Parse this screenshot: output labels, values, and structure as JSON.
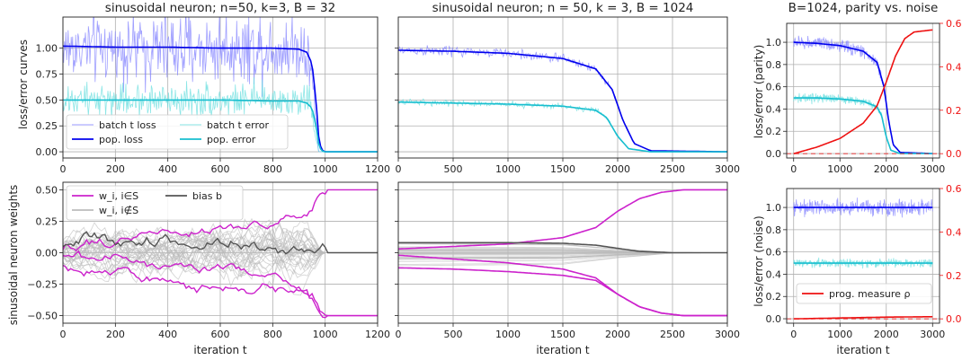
{
  "figure": {
    "type": "line",
    "grid": true
  },
  "colors": {
    "batch_loss": "#8080ff",
    "pop_loss": "#0000ee",
    "batch_error": "#66dddd",
    "pop_error": "#17becf",
    "weight_in_S": "#cc22cc",
    "weight_not_in_S": "#bbbbbb",
    "bias": "#555555",
    "prog_measure": "#ee1111",
    "right_axis": "#ee1111"
  },
  "chart_data": [
    {
      "id": "p1",
      "type": "line",
      "title": "sinusoidal neuron; n=50, k=3, B = 32",
      "xlabel": "",
      "ylabel": "loss/error curves",
      "xlim": [
        0,
        1200
      ],
      "ylim": [
        -0.06,
        1.3
      ],
      "xticks": [
        0,
        200,
        400,
        600,
        800,
        1000,
        1200
      ],
      "yticks": [
        0.0,
        0.25,
        0.5,
        0.75,
        1.0
      ],
      "ytick_labels": [
        "0.00",
        "0.25",
        "0.50",
        "0.75",
        "1.00"
      ],
      "legend_location": "lower-left",
      "legend": [
        "batch t loss",
        "pop. loss",
        "batch t error",
        "pop. error"
      ],
      "series": [
        {
          "name": "batch t loss",
          "style": "noisy",
          "color_key": "batch_loss",
          "x": [
            0,
            940,
            975,
            1200
          ],
          "y": [
            1.0,
            1.0,
            0.0,
            0.0
          ],
          "noise": 0.17
        },
        {
          "name": "batch t error",
          "style": "noisy",
          "color_key": "batch_error",
          "x": [
            0,
            940,
            975,
            1200
          ],
          "y": [
            0.5,
            0.5,
            0.0,
            0.0
          ],
          "noise": 0.08
        },
        {
          "name": "pop. loss",
          "style": "line",
          "color_key": "pop_loss",
          "x": [
            0,
            200,
            400,
            600,
            800,
            900,
            930,
            950,
            965,
            975,
            985,
            1000,
            1200
          ],
          "y": [
            1.02,
            1.01,
            1.01,
            1.0,
            1.0,
            0.99,
            0.96,
            0.85,
            0.5,
            0.15,
            0.02,
            0.0,
            0.0
          ]
        },
        {
          "name": "pop. error",
          "style": "line",
          "color_key": "pop_error",
          "x": [
            0,
            200,
            400,
            600,
            800,
            900,
            930,
            950,
            965,
            975,
            985,
            1000,
            1200
          ],
          "y": [
            0.5,
            0.5,
            0.5,
            0.5,
            0.49,
            0.49,
            0.47,
            0.42,
            0.25,
            0.08,
            0.01,
            0.0,
            0.0
          ]
        }
      ]
    },
    {
      "id": "p2",
      "type": "line",
      "title": "sinusoidal neuron; n = 50, k = 3, B = 1024",
      "xlabel": "",
      "ylabel": "",
      "xlim": [
        0,
        3000
      ],
      "ylim": [
        -0.06,
        1.3
      ],
      "xticks": [
        0,
        500,
        1000,
        1500,
        2000,
        2500,
        3000
      ],
      "yticks": [
        0.0,
        0.25,
        0.5,
        0.75,
        1.0
      ],
      "ytick_labels": [],
      "series": [
        {
          "name": "batch t loss",
          "style": "noisy",
          "color_key": "batch_loss",
          "x": [
            0,
            500,
            1000,
            1500,
            1800,
            1950,
            2050,
            2150,
            2300,
            3000
          ],
          "y": [
            0.98,
            0.97,
            0.95,
            0.9,
            0.8,
            0.6,
            0.3,
            0.08,
            0.01,
            0.0
          ],
          "noise": 0.025
        },
        {
          "name": "batch t error",
          "style": "noisy",
          "color_key": "batch_error",
          "x": [
            0,
            500,
            1000,
            1500,
            1800,
            1900,
            2000,
            2100,
            2300,
            3000
          ],
          "y": [
            0.48,
            0.47,
            0.46,
            0.44,
            0.4,
            0.33,
            0.15,
            0.03,
            0.0,
            0.0
          ],
          "noise": 0.015
        },
        {
          "name": "pop. loss",
          "style": "line",
          "color_key": "pop_loss",
          "x": [
            0,
            500,
            1000,
            1500,
            1800,
            1950,
            2050,
            2150,
            2300,
            3000
          ],
          "y": [
            0.98,
            0.97,
            0.95,
            0.9,
            0.8,
            0.6,
            0.3,
            0.08,
            0.01,
            0.0
          ]
        },
        {
          "name": "pop. error",
          "style": "line",
          "color_key": "pop_error",
          "x": [
            0,
            500,
            1000,
            1500,
            1800,
            1900,
            2000,
            2100,
            2300,
            3000
          ],
          "y": [
            0.48,
            0.47,
            0.46,
            0.44,
            0.4,
            0.33,
            0.15,
            0.03,
            0.0,
            0.0
          ]
        }
      ]
    },
    {
      "id": "p3",
      "type": "line",
      "title": "B=1024, parity vs. noise",
      "xlabel": "",
      "ylabel": "loss/error (parity)",
      "xlim": [
        -150,
        3150
      ],
      "ylim": [
        -0.04,
        1.17
      ],
      "xticks": [
        0,
        1000,
        2000,
        3000
      ],
      "yticks": [
        0.0,
        0.2,
        0.4,
        0.6,
        0.8,
        1.0
      ],
      "ytick_labels": [
        "0.0",
        "0.2",
        "0.4",
        "0.6",
        "0.8",
        "1.0"
      ],
      "y2lim": [
        -0.02,
        0.6
      ],
      "y2ticks": [
        0.0,
        0.2,
        0.4,
        0.6
      ],
      "y2tick_labels": [
        "0.0",
        "0.2",
        "0.4",
        "0.6"
      ],
      "series": [
        {
          "name": "batch t loss",
          "style": "noisy",
          "color_key": "batch_loss",
          "x": [
            0,
            500,
            1000,
            1500,
            1800,
            1950,
            2050,
            2150,
            2300,
            3000
          ],
          "y": [
            1.0,
            0.99,
            0.97,
            0.92,
            0.82,
            0.6,
            0.3,
            0.08,
            0.01,
            0.0
          ],
          "noise": 0.03
        },
        {
          "name": "batch t error",
          "style": "noisy",
          "color_key": "batch_error",
          "x": [
            0,
            500,
            1000,
            1500,
            1800,
            1900,
            2000,
            2100,
            2300,
            3000
          ],
          "y": [
            0.5,
            0.5,
            0.49,
            0.47,
            0.42,
            0.34,
            0.15,
            0.03,
            0.0,
            0.0
          ],
          "noise": 0.02
        },
        {
          "name": "pop. loss",
          "style": "line",
          "color_key": "pop_loss",
          "x": [
            0,
            500,
            1000,
            1500,
            1800,
            1950,
            2050,
            2150,
            2300,
            3000
          ],
          "y": [
            1.0,
            0.99,
            0.97,
            0.92,
            0.82,
            0.6,
            0.3,
            0.08,
            0.01,
            0.0
          ]
        },
        {
          "name": "pop. error",
          "style": "line",
          "color_key": "pop_error",
          "x": [
            0,
            500,
            1000,
            1500,
            1800,
            1900,
            2000,
            2100,
            2300,
            3000
          ],
          "y": [
            0.5,
            0.5,
            0.49,
            0.47,
            0.42,
            0.34,
            0.15,
            0.03,
            0.0,
            0.0
          ]
        },
        {
          "name": "prog. measure ρ",
          "style": "line",
          "axis": "right",
          "color_key": "prog_measure",
          "x": [
            0,
            500,
            1000,
            1500,
            1800,
            2000,
            2200,
            2400,
            2600,
            3000
          ],
          "y": [
            0.0,
            0.03,
            0.07,
            0.14,
            0.22,
            0.33,
            0.45,
            0.53,
            0.56,
            0.57
          ]
        },
        {
          "name": "zero level",
          "style": "dashed",
          "axis": "right",
          "color_key": "prog_measure",
          "x": [
            -150,
            3150
          ],
          "y": [
            0.0,
            0.0
          ]
        }
      ]
    },
    {
      "id": "p4",
      "type": "line",
      "title": "",
      "xlabel": "iteration t",
      "ylabel": "sinusoidal neuron weights",
      "xlim": [
        0,
        1200
      ],
      "ylim": [
        -0.56,
        0.56
      ],
      "xticks": [
        0,
        200,
        400,
        600,
        800,
        1000,
        1200
      ],
      "yticks": [
        -0.5,
        -0.25,
        0.0,
        0.25,
        0.5
      ],
      "ytick_labels": [
        "−0.50",
        "−0.25",
        "0.00",
        "0.25",
        "0.50"
      ],
      "legend_location": "top-left",
      "legend": [
        "w_i, i∈S",
        "w_i, i∉S",
        "bias b"
      ],
      "series": [
        {
          "name": "w_i, i∉S",
          "style": "bundle",
          "color_key": "weight_not_in_S",
          "count": 30,
          "x": [
            0,
            900,
            950,
            990,
            1200
          ],
          "spread": [
            0.09,
            0.13,
            0.09,
            0.0,
            0.0
          ],
          "noise": 0.035
        },
        {
          "name": "w_i, i∈S",
          "style": "noisy-line",
          "color_key": "weight_in_S",
          "x": [
            0,
            200,
            400,
            600,
            800,
            900,
            950,
            980,
            1000,
            1200
          ],
          "y": [
            0.03,
            0.1,
            0.14,
            0.18,
            0.25,
            0.3,
            0.35,
            0.48,
            0.5,
            0.5
          ],
          "noise": 0.015
        },
        {
          "name": "w_i, i∈S",
          "style": "noisy-line",
          "color_key": "weight_in_S",
          "x": [
            0,
            200,
            400,
            600,
            800,
            900,
            950,
            980,
            1000,
            1200
          ],
          "y": [
            -0.02,
            -0.05,
            -0.1,
            -0.12,
            -0.2,
            -0.3,
            -0.36,
            -0.48,
            -0.5,
            -0.5
          ],
          "noise": 0.015
        },
        {
          "name": "w_i, i∈S",
          "style": "noisy-line",
          "color_key": "weight_in_S",
          "x": [
            0,
            200,
            400,
            600,
            800,
            900,
            950,
            980,
            1000,
            1200
          ],
          "y": [
            -0.1,
            -0.15,
            -0.25,
            -0.28,
            -0.3,
            -0.33,
            -0.38,
            -0.48,
            -0.5,
            -0.5
          ],
          "noise": 0.015
        },
        {
          "name": "bias b",
          "style": "noisy-line",
          "color_key": "bias",
          "x": [
            0,
            200,
            400,
            600,
            800,
            950,
            1000,
            1200
          ],
          "y": [
            0.07,
            0.08,
            0.12,
            0.1,
            0.02,
            -0.01,
            0.0,
            0.0
          ],
          "noise": 0.02
        }
      ]
    },
    {
      "id": "p5",
      "type": "line",
      "title": "",
      "xlabel": "iteration t",
      "ylabel": "",
      "xlim": [
        0,
        3000
      ],
      "ylim": [
        -0.56,
        0.56
      ],
      "xticks": [
        0,
        500,
        1000,
        1500,
        2000,
        2500,
        3000
      ],
      "yticks": [
        -0.5,
        -0.25,
        0.0,
        0.25,
        0.5
      ],
      "ytick_labels": [],
      "series": [
        {
          "name": "w_i, i∉S",
          "style": "bundle",
          "color_key": "weight_not_in_S",
          "count": 30,
          "x": [
            0,
            1500,
            2000,
            2500,
            3000
          ],
          "spread": [
            0.09,
            0.08,
            0.035,
            0.002,
            0.0
          ],
          "noise": 0.0
        },
        {
          "name": "w_i, i∈S",
          "style": "line",
          "color_key": "weight_in_S",
          "x": [
            0,
            500,
            1000,
            1500,
            1800,
            2000,
            2200,
            2400,
            2600,
            3000
          ],
          "y": [
            0.03,
            0.05,
            0.07,
            0.12,
            0.2,
            0.33,
            0.43,
            0.48,
            0.5,
            0.5
          ]
        },
        {
          "name": "w_i, i∈S",
          "style": "line",
          "color_key": "weight_in_S",
          "x": [
            0,
            500,
            1000,
            1500,
            1800,
            2000,
            2200,
            2400,
            2600,
            3000
          ],
          "y": [
            -0.02,
            -0.05,
            -0.08,
            -0.13,
            -0.2,
            -0.33,
            -0.43,
            -0.48,
            -0.5,
            -0.5
          ]
        },
        {
          "name": "w_i, i∈S",
          "style": "line",
          "color_key": "weight_in_S",
          "x": [
            0,
            500,
            1000,
            1500,
            1800,
            2000,
            2200,
            2400,
            2600,
            3000
          ],
          "y": [
            -0.12,
            -0.13,
            -0.15,
            -0.18,
            -0.22,
            -0.33,
            -0.43,
            -0.48,
            -0.5,
            -0.5
          ]
        },
        {
          "name": "bias b",
          "style": "line",
          "color_key": "bias",
          "x": [
            0,
            500,
            1000,
            1500,
            1800,
            2000,
            2200,
            2500,
            3000
          ],
          "y": [
            0.08,
            0.08,
            0.08,
            0.075,
            0.06,
            0.035,
            0.01,
            0.0,
            0.0
          ]
        }
      ]
    },
    {
      "id": "p6",
      "type": "line",
      "title": "",
      "xlabel": "iteration t",
      "ylabel": "loss/error (noise)",
      "xlim": [
        -150,
        3150
      ],
      "ylim": [
        -0.04,
        1.17
      ],
      "xticks": [
        0,
        1000,
        2000,
        3000
      ],
      "yticks": [
        0.0,
        0.2,
        0.4,
        0.6,
        0.8,
        1.0
      ],
      "ytick_labels": [
        "0.0",
        "0.2",
        "0.4",
        "0.6",
        "0.8",
        "1.0"
      ],
      "y2lim": [
        -0.02,
        0.6
      ],
      "y2ticks": [
        0.0,
        0.2,
        0.4,
        0.6
      ],
      "y2tick_labels": [
        "0.0",
        "0.2",
        "0.4",
        "0.6"
      ],
      "legend_location": "lower-center",
      "legend": [
        "prog. measure ρ"
      ],
      "series": [
        {
          "name": "batch t loss",
          "style": "noisy",
          "color_key": "batch_loss",
          "x": [
            0,
            3000
          ],
          "y": [
            1.0,
            1.0
          ],
          "noise": 0.035
        },
        {
          "name": "batch t error",
          "style": "noisy",
          "color_key": "batch_error",
          "x": [
            0,
            3000
          ],
          "y": [
            0.5,
            0.5
          ],
          "noise": 0.018
        },
        {
          "name": "pop. loss",
          "style": "line",
          "color_key": "pop_loss",
          "x": [
            0,
            3000
          ],
          "y": [
            1.0,
            1.0
          ]
        },
        {
          "name": "pop. error",
          "style": "line",
          "color_key": "pop_error",
          "x": [
            0,
            3000
          ],
          "y": [
            0.5,
            0.5
          ]
        },
        {
          "name": "prog. measure ρ",
          "style": "line",
          "axis": "right",
          "color_key": "prog_measure",
          "x": [
            0,
            1000,
            2000,
            3000
          ],
          "y": [
            0.0,
            0.004,
            0.008,
            0.01
          ]
        },
        {
          "name": "zero level",
          "style": "dashed",
          "axis": "right",
          "color_key": "prog_measure",
          "x": [
            -150,
            3150
          ],
          "y": [
            0.0,
            0.0
          ]
        }
      ]
    }
  ]
}
